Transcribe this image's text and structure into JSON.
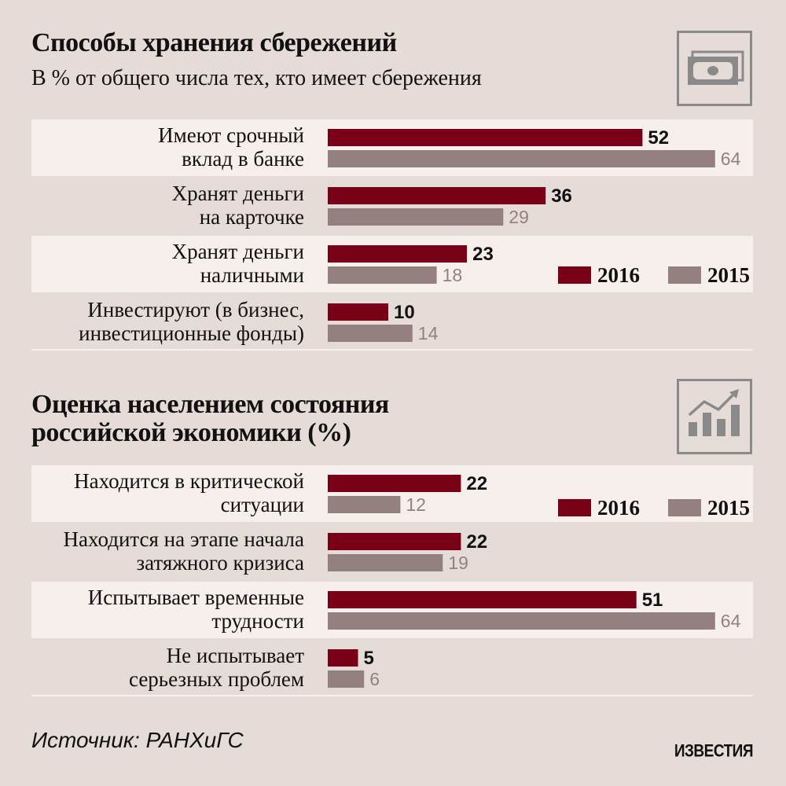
{
  "colors": {
    "background": "#e5dcd8",
    "row_band": "#f6efec",
    "series_2016": "#780017",
    "series_2015": "#958080",
    "label_2015": "#958080",
    "icon": "#8a8a8a"
  },
  "icons": {
    "savings": "banknote-icon",
    "economy": "growth-chart-icon"
  },
  "source_label": "Источник: РАНХиГС",
  "logo_text": "ИЗВЕСТИЯ",
  "chart_data": [
    {
      "type": "bar",
      "orientation": "horizontal",
      "title": "Способы хранения сбережений",
      "subtitle": "В % от общего числа тех, кто имеет сбережения",
      "categories": [
        [
          "Имеют срочный",
          "вклад в банке"
        ],
        [
          "Хранят деньги",
          "на карточке"
        ],
        [
          "Хранят деньги",
          "наличными"
        ],
        [
          "Инвестируют (в бизнес,",
          "инвестиционные фонды)"
        ]
      ],
      "series": [
        {
          "name": "2016",
          "values": [
            52,
            36,
            23,
            10
          ]
        },
        {
          "name": "2015",
          "values": [
            64,
            29,
            18,
            14
          ]
        }
      ],
      "xlim": [
        0,
        70
      ],
      "legend": "right, between third and fourth row"
    },
    {
      "type": "bar",
      "orientation": "horizontal",
      "title": "Оценка населением состояния российской экономики (%)",
      "subtitle": "",
      "categories": [
        [
          "Находится в критической",
          "ситуации"
        ],
        [
          "Находится на этапе начала",
          "затяжного кризиса"
        ],
        [
          "Испытывает временные",
          "трудности"
        ],
        [
          "Не испытывает",
          "серьезных проблем"
        ]
      ],
      "series": [
        {
          "name": "2016",
          "values": [
            22,
            22,
            51,
            5
          ]
        },
        {
          "name": "2015",
          "values": [
            12,
            19,
            64,
            6
          ]
        }
      ],
      "xlim": [
        0,
        70
      ],
      "legend": "right, beside first row"
    }
  ]
}
